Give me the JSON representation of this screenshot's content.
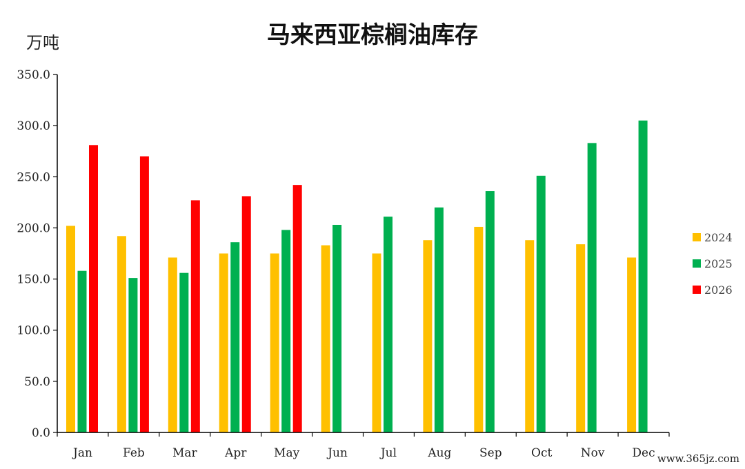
{
  "chart_data": {
    "type": "bar",
    "title": "马来西亚棕榈油库存",
    "ylabel": "万吨",
    "xlabel": "",
    "ylim": [
      0,
      350
    ],
    "yticks": [
      "0.0",
      "50.0",
      "100.0",
      "150.0",
      "200.0",
      "250.0",
      "300.0",
      "350.0"
    ],
    "categories": [
      "Jan",
      "Feb",
      "Mar",
      "Apr",
      "May",
      "Jun",
      "Jul",
      "Aug",
      "Sep",
      "Oct",
      "Nov",
      "Dec"
    ],
    "legend_position": "right",
    "grid": false,
    "series": [
      {
        "name": "2024",
        "color": "#FFC000",
        "values": [
          202,
          192,
          171,
          175,
          175,
          183,
          175,
          188,
          201,
          188,
          184,
          171
        ]
      },
      {
        "name": "2025",
        "color": "#00B050",
        "values": [
          158,
          151,
          156,
          186,
          198,
          203,
          211,
          220,
          236,
          251,
          283,
          305
        ]
      },
      {
        "name": "2026",
        "color": "#FF0000",
        "values": [
          281,
          270,
          227,
          231,
          242,
          null,
          null,
          null,
          null,
          null,
          null,
          null
        ]
      }
    ]
  },
  "watermark": "www.365jz.com"
}
